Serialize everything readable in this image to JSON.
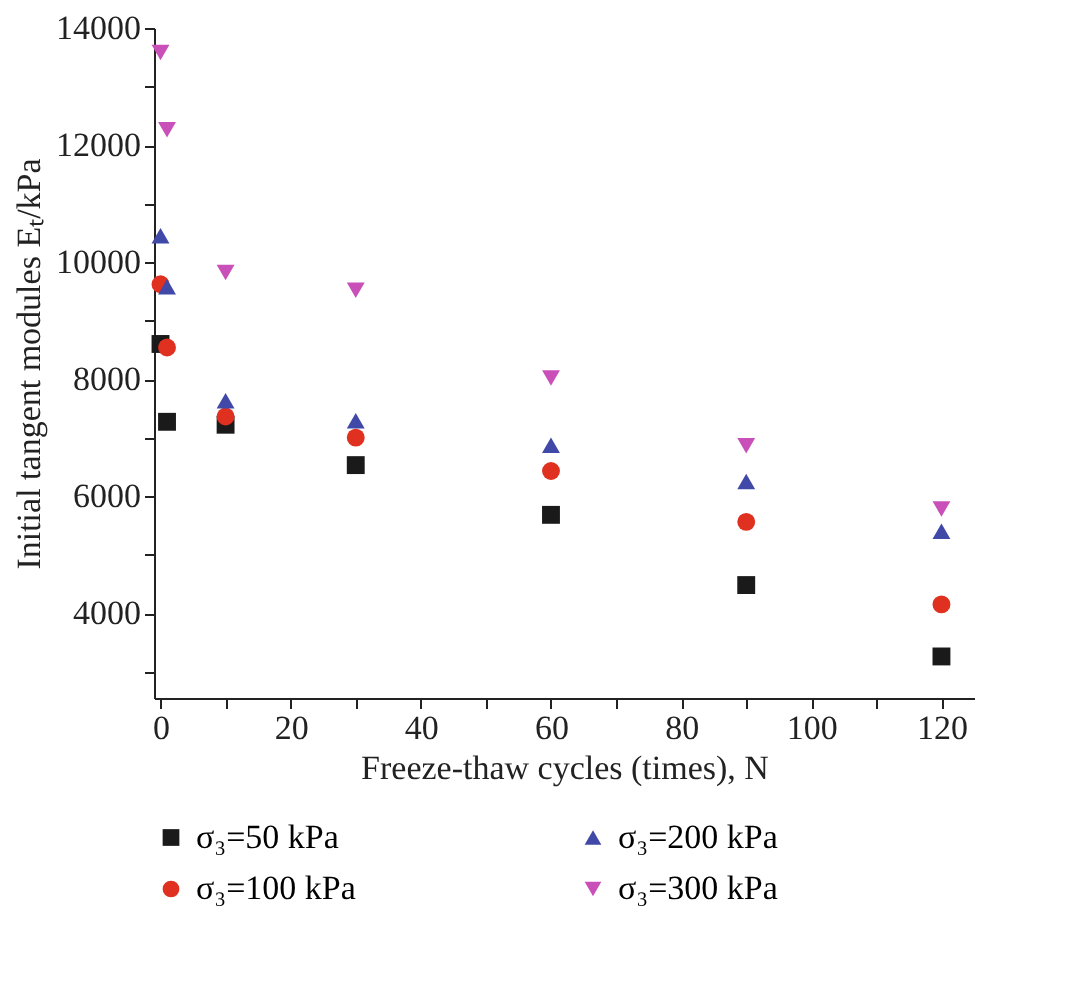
{
  "chart_data": {
    "type": "scatter",
    "xlabel": "Freeze-thaw cycles (times), N",
    "ylabel": "Initial tangent modules Eₜ/kPa",
    "x": [
      0,
      1,
      10,
      30,
      60,
      90,
      120
    ],
    "series": [
      {
        "name": "σ₃=50 kPa",
        "color": "#1a1a1a",
        "marker": "square",
        "values": [
          8600,
          7270,
          7220,
          6530,
          5680,
          4480,
          3260
        ]
      },
      {
        "name": "σ₃=100 kPa",
        "color": "#e03020",
        "marker": "circle",
        "values": [
          9620,
          8540,
          7360,
          7000,
          6430,
          5560,
          4150
        ]
      },
      {
        "name": "σ₃=200 kPa",
        "color": "#4048a8",
        "marker": "triangle",
        "values": [
          10450,
          9580,
          7630,
          7290,
          6870,
          6250,
          5400
        ]
      },
      {
        "name": "σ₃=300 kPa",
        "color": "#c850b8",
        "marker": "triangle-down",
        "values": [
          13580,
          12260,
          9820,
          9520,
          8020,
          6860,
          5780
        ]
      }
    ],
    "xlim": [
      -1,
      125
    ],
    "xticks": [
      0,
      {
        "value": 10,
        "label": null
      },
      20,
      {
        "value": 30,
        "label": null
      },
      40,
      {
        "value": 50,
        "label": null
      },
      60,
      {
        "value": 70,
        "label": null
      },
      80,
      {
        "value": 90,
        "label": null
      },
      100,
      {
        "value": 110,
        "label": null
      },
      120
    ],
    "ylim": [
      2550,
      14000
    ],
    "yticks": [
      {
        "value": 3000,
        "label": null
      },
      4000,
      {
        "value": 5000,
        "label": null
      },
      6000,
      {
        "value": 7000,
        "label": null
      },
      8000,
      {
        "value": 9000,
        "label": null
      },
      10000,
      {
        "value": 11000,
        "label": null
      },
      12000,
      {
        "value": 13000,
        "label": null
      },
      14000
    ],
    "grid": false,
    "legend": "bottom"
  }
}
